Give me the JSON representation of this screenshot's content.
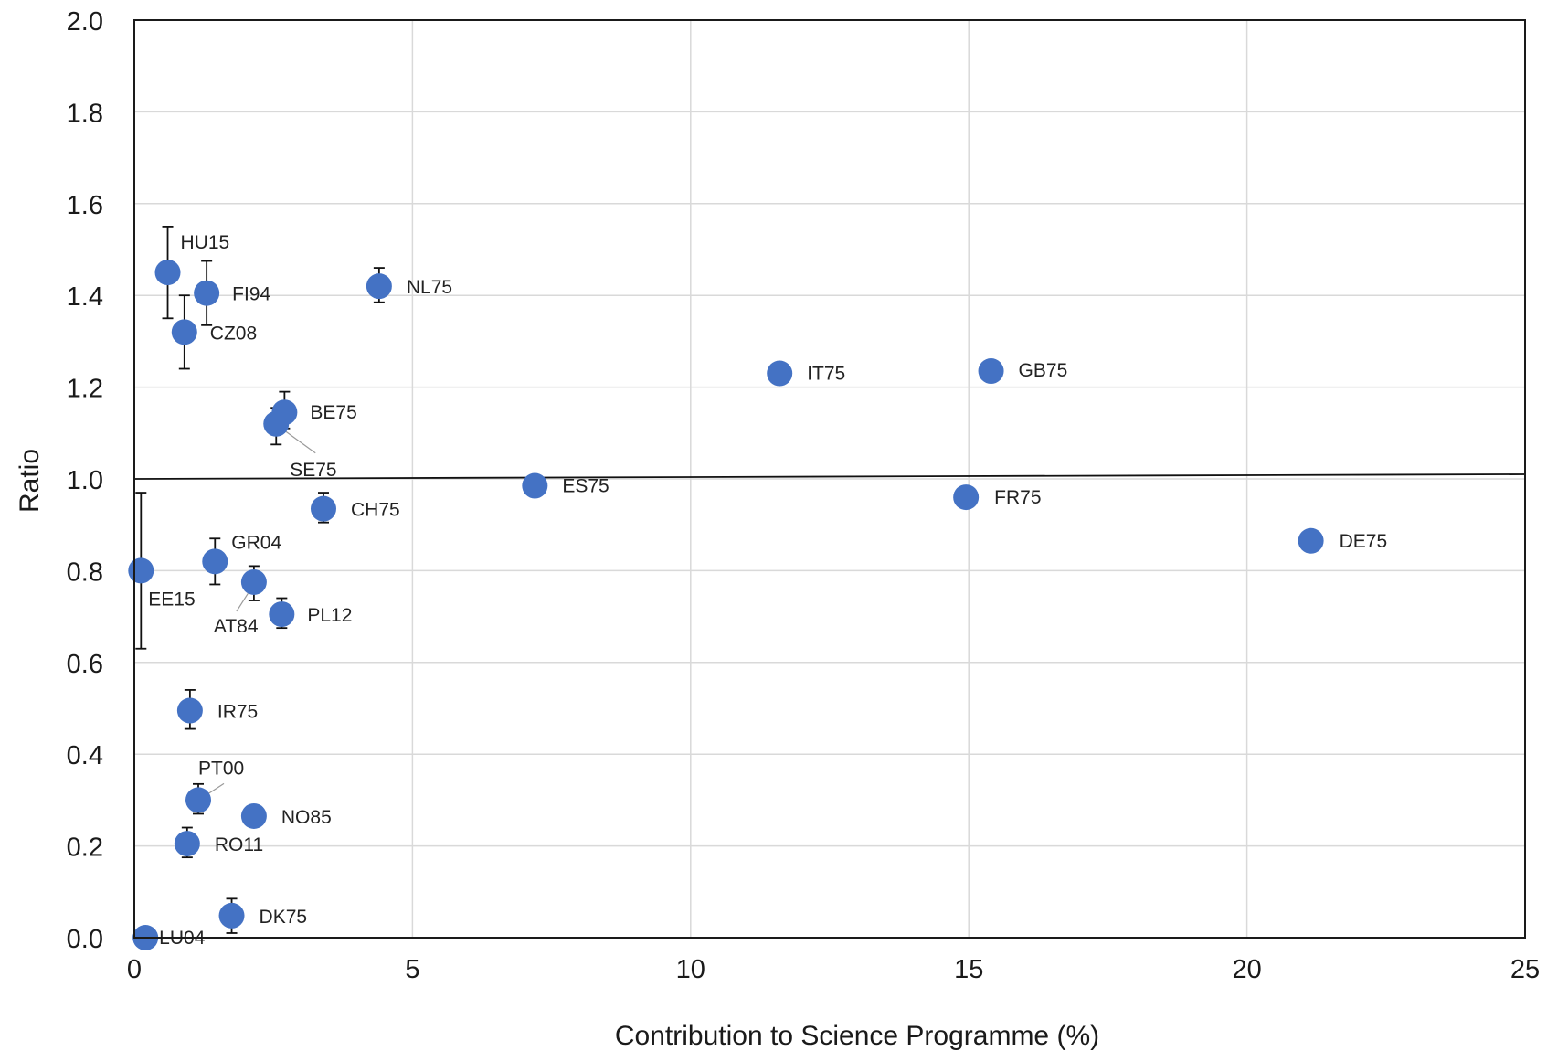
{
  "chart_data": {
    "type": "scatter",
    "title": "",
    "xlabel": "Contribution to  Science Programme (%)",
    "ylabel": "Ratio",
    "xlim": [
      0,
      25
    ],
    "ylim": [
      0,
      2.0
    ],
    "x_ticks": [
      "0",
      "5",
      "10",
      "15",
      "20",
      "25"
    ],
    "y_ticks": [
      "0.0",
      "0.2",
      "0.4",
      "0.6",
      "0.8",
      "1.0",
      "1.2",
      "1.4",
      "1.6",
      "1.8",
      "2.0"
    ],
    "grid": true,
    "reference_line": {
      "from": [
        0,
        1.0
      ],
      "to": [
        25,
        1.01
      ]
    },
    "marker_color": "#4472C4",
    "points": [
      {
        "label": "HU15",
        "x": 0.6,
        "y": 1.45,
        "err_low": 1.35,
        "err_high": 1.55
      },
      {
        "label": "FI94",
        "x": 1.3,
        "y": 1.405,
        "err_low": 1.335,
        "err_high": 1.475
      },
      {
        "label": "CZ08",
        "x": 0.9,
        "y": 1.32,
        "err_low": 1.24,
        "err_high": 1.4
      },
      {
        "label": "NL75",
        "x": 4.4,
        "y": 1.42,
        "err_low": 1.385,
        "err_high": 1.46
      },
      {
        "label": "IT75",
        "x": 11.6,
        "y": 1.23
      },
      {
        "label": "GB75",
        "x": 15.4,
        "y": 1.235
      },
      {
        "label": "BE75",
        "x": 2.7,
        "y": 1.145,
        "err_low": 1.11,
        "err_high": 1.19
      },
      {
        "label": "SE75",
        "x": 2.55,
        "y": 1.12,
        "err_low": 1.075,
        "err_high": 1.155
      },
      {
        "label": "ES75",
        "x": 7.2,
        "y": 0.985
      },
      {
        "label": "FR75",
        "x": 14.95,
        "y": 0.96
      },
      {
        "label": "DE75",
        "x": 21.15,
        "y": 0.865
      },
      {
        "label": "CH75",
        "x": 3.4,
        "y": 0.935,
        "err_low": 0.905,
        "err_high": 0.97
      },
      {
        "label": "GR04",
        "x": 1.45,
        "y": 0.82,
        "err_low": 0.77,
        "err_high": 0.87
      },
      {
        "label": "EE15",
        "x": 0.12,
        "y": 0.8,
        "err_low": 0.63,
        "err_high": 0.97
      },
      {
        "label": "AT84",
        "x": 2.15,
        "y": 0.775,
        "err_low": 0.735,
        "err_high": 0.81
      },
      {
        "label": "PL12",
        "x": 2.65,
        "y": 0.705,
        "err_low": 0.675,
        "err_high": 0.74
      },
      {
        "label": "IR75",
        "x": 1.0,
        "y": 0.495,
        "err_low": 0.455,
        "err_high": 0.54
      },
      {
        "label": "PT00",
        "x": 1.15,
        "y": 0.3,
        "err_low": 0.27,
        "err_high": 0.335
      },
      {
        "label": "NO85",
        "x": 2.15,
        "y": 0.265
      },
      {
        "label": "RO11",
        "x": 0.95,
        "y": 0.205,
        "err_low": 0.175,
        "err_high": 0.24
      },
      {
        "label": "LU04",
        "x": 0.2,
        "y": 0.0
      },
      {
        "label": "DK75",
        "x": 1.75,
        "y": 0.048,
        "err_low": 0.01,
        "err_high": 0.085
      }
    ]
  }
}
